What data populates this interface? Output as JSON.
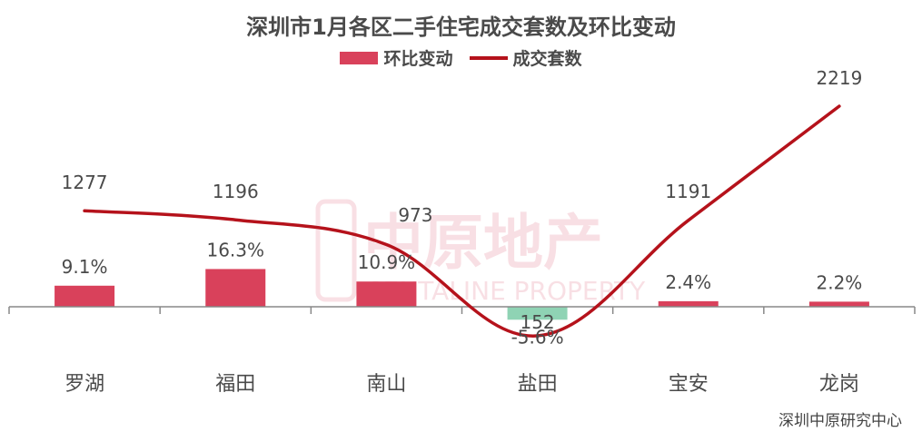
{
  "title": "深圳市1月各区二手住宅成交套数及环比变动",
  "legend": {
    "bar_label": "环比变动",
    "line_label": "成交套数"
  },
  "watermark": {
    "cn": "中原地产",
    "en": "CENTALINE PROPERTY"
  },
  "source": "深圳中原研究中心",
  "colors": {
    "bar_positive": "#d9415b",
    "bar_negative": "#8fd3b4",
    "line": "#b5121b",
    "axis": "#888888",
    "text": "#4a4a4a"
  },
  "chart_data": {
    "type": "bar+line",
    "categories": [
      "罗湖",
      "福田",
      "南山",
      "盐田",
      "宝安",
      "龙岗"
    ],
    "series": [
      {
        "name": "环比变动",
        "type": "bar",
        "values": [
          9.1,
          16.3,
          10.9,
          -5.6,
          2.4,
          2.2
        ],
        "labels": [
          "9.1%",
          "16.3%",
          "10.9%",
          "-5.6%",
          "2.4%",
          "2.2%"
        ]
      },
      {
        "name": "成交套数",
        "type": "line",
        "values": [
          1277,
          1196,
          973,
          152,
          1191,
          2219
        ],
        "labels": [
          "1277",
          "1196",
          "973",
          "152",
          "1191",
          "2219"
        ]
      }
    ]
  }
}
